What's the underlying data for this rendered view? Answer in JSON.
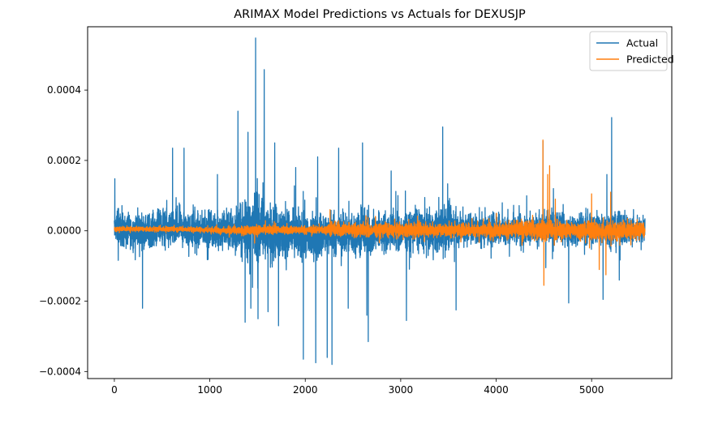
{
  "chart_data": {
    "type": "line",
    "title": "ARIMAX Model Predictions vs Actuals for DEXUSJP",
    "xlabel": "",
    "ylabel": "",
    "xlim": [
      -280,
      5840
    ],
    "ylim": [
      -0.00042,
      0.00058
    ],
    "x_ticks": [
      0,
      1000,
      2000,
      3000,
      4000,
      5000
    ],
    "y_ticks": [
      -0.0004,
      -0.0002,
      0.0,
      0.0002,
      0.0004
    ],
    "y_tick_labels": [
      "−0.0004",
      "−0.0002",
      "0.0000",
      "0.0002",
      "0.0004"
    ],
    "grid": false,
    "legend_position": "top-right",
    "n_points": 5560,
    "series": [
      {
        "name": "Actual",
        "color": "#1f77b4",
        "envelope_x": [
          0,
          100,
          200,
          300,
          400,
          500,
          600,
          700,
          800,
          900,
          1000,
          1100,
          1200,
          1300,
          1400,
          1500,
          1600,
          1700,
          1800,
          1900,
          2000,
          2100,
          2200,
          2300,
          2400,
          2500,
          2600,
          2700,
          2800,
          2900,
          3000,
          3100,
          3200,
          3300,
          3400,
          3500,
          3600,
          3700,
          3800,
          3900,
          4000,
          4100,
          4200,
          4300,
          4400,
          4500,
          4600,
          4700,
          4800,
          4900,
          5000,
          5100,
          5200,
          5300,
          5400,
          5500,
          5560
        ],
        "envelope_high": [
          0.00013,
          0.00012,
          0.00012,
          0.00012,
          0.00013,
          0.00014,
          0.00012,
          0.00013,
          0.00012,
          0.00012,
          0.00014,
          0.00014,
          0.00015,
          0.00017,
          0.00022,
          0.00024,
          0.0002,
          0.00019,
          0.00017,
          0.00016,
          0.00015,
          0.00015,
          0.00014,
          0.00014,
          0.00013,
          0.00014,
          0.00015,
          0.00014,
          0.00013,
          0.00013,
          0.00013,
          0.00013,
          0.00014,
          0.00014,
          0.00015,
          0.00016,
          0.00013,
          0.00013,
          0.00012,
          0.00012,
          0.00012,
          0.00011,
          0.00011,
          0.00011,
          0.00011,
          0.00012,
          0.00012,
          0.00011,
          0.0001,
          0.00011,
          0.00011,
          0.00012,
          0.00013,
          0.00012,
          0.00011,
          0.0001,
          0.0001
        ],
        "envelope_low": [
          -0.00011,
          -0.00012,
          -0.00012,
          -0.00012,
          -0.00012,
          -0.00012,
          -0.00012,
          -0.00011,
          -0.00012,
          -0.00012,
          -0.00013,
          -0.00014,
          -0.00015,
          -0.00017,
          -0.00021,
          -0.00023,
          -0.0002,
          -0.00019,
          -0.00018,
          -0.00018,
          -0.00019,
          -0.00018,
          -0.00016,
          -0.00015,
          -0.00015,
          -0.00016,
          -0.00017,
          -0.00016,
          -0.00014,
          -0.00013,
          -0.00013,
          -0.00013,
          -0.00013,
          -0.00014,
          -0.00015,
          -0.00014,
          -0.00012,
          -0.00011,
          -0.00011,
          -0.00011,
          -0.00011,
          -0.0001,
          -0.0001,
          -0.0001,
          -0.0001,
          -0.00011,
          -0.00011,
          -0.0001,
          -0.0001,
          -0.0001,
          -0.0001,
          -0.00011,
          -0.00012,
          -0.00011,
          -0.0001,
          -9e-05,
          -9e-05
        ],
        "spikes": [
          {
            "x": 5,
            "y": 0.000148
          },
          {
            "x": 295,
            "y": -0.00022
          },
          {
            "x": 610,
            "y": 0.000235
          },
          {
            "x": 730,
            "y": 0.000235
          },
          {
            "x": 1080,
            "y": 0.00016
          },
          {
            "x": 1295,
            "y": 0.00034
          },
          {
            "x": 1370,
            "y": -0.00026
          },
          {
            "x": 1400,
            "y": 0.00028
          },
          {
            "x": 1430,
            "y": -0.00022
          },
          {
            "x": 1480,
            "y": 0.000548
          },
          {
            "x": 1505,
            "y": -0.00025
          },
          {
            "x": 1570,
            "y": 0.000458
          },
          {
            "x": 1610,
            "y": -0.00023
          },
          {
            "x": 1680,
            "y": 0.00025
          },
          {
            "x": 1720,
            "y": -0.00027
          },
          {
            "x": 1900,
            "y": 0.00018
          },
          {
            "x": 1980,
            "y": -0.000365
          },
          {
            "x": 2110,
            "y": -0.000375
          },
          {
            "x": 2130,
            "y": 0.00021
          },
          {
            "x": 2230,
            "y": -0.00036
          },
          {
            "x": 2280,
            "y": -0.00038
          },
          {
            "x": 2350,
            "y": 0.000235
          },
          {
            "x": 2450,
            "y": -0.00022
          },
          {
            "x": 2600,
            "y": 0.00025
          },
          {
            "x": 2645,
            "y": -0.00024
          },
          {
            "x": 2660,
            "y": -0.000315
          },
          {
            "x": 2900,
            "y": 0.00017
          },
          {
            "x": 3060,
            "y": -0.000255
          },
          {
            "x": 3440,
            "y": 0.000295
          },
          {
            "x": 3580,
            "y": -0.000225
          },
          {
            "x": 4490,
            "y": 0.000255
          },
          {
            "x": 4520,
            "y": -0.000105
          },
          {
            "x": 4600,
            "y": 0.00012
          },
          {
            "x": 4760,
            "y": -0.000205
          },
          {
            "x": 5120,
            "y": -0.000195
          },
          {
            "x": 5160,
            "y": 0.00016
          },
          {
            "x": 5210,
            "y": 0.000322
          },
          {
            "x": 5290,
            "y": -0.00014
          }
        ]
      },
      {
        "name": "Predicted",
        "color": "#ff7f0e",
        "envelope_x": [
          0,
          200,
          400,
          600,
          800,
          1000,
          1200,
          1400,
          1600,
          1800,
          2000,
          2200,
          2300,
          2400,
          2600,
          2800,
          3000,
          3200,
          3400,
          3600,
          3800,
          4000,
          4200,
          4400,
          4500,
          4600,
          4800,
          5000,
          5200,
          5400,
          5560
        ],
        "envelope_high": [
          2.2e-05,
          2e-05,
          2e-05,
          2.2e-05,
          2e-05,
          2e-05,
          2.5e-05,
          3.5e-05,
          3.5e-05,
          3e-05,
          3e-05,
          3e-05,
          5.5e-05,
          5e-05,
          5e-05,
          4.5e-05,
          5e-05,
          5e-05,
          5e-05,
          5e-05,
          5e-05,
          5.5e-05,
          6e-05,
          6.5e-05,
          7.5e-05,
          6e-05,
          6e-05,
          6.5e-05,
          7e-05,
          6e-05,
          5.5e-05
        ],
        "envelope_low": [
          -1.2e-05,
          -1e-05,
          -1e-05,
          -1.2e-05,
          -1.2e-05,
          -1.5e-05,
          -2.5e-05,
          -3e-05,
          -3e-05,
          -2.5e-05,
          -2.5e-05,
          -2.5e-05,
          -5e-05,
          -4.5e-05,
          -4.5e-05,
          -4e-05,
          -4.5e-05,
          -4.5e-05,
          -4.5e-05,
          -4.5e-05,
          -4.5e-05,
          -5e-05,
          -5.5e-05,
          -6e-05,
          -7e-05,
          -6e-05,
          -5.5e-05,
          -6.5e-05,
          -7e-05,
          -6e-05,
          -5e-05
        ],
        "spikes": [
          {
            "x": 1470,
            "y": -3.5e-05
          },
          {
            "x": 2260,
            "y": 6e-05
          },
          {
            "x": 4490,
            "y": 0.000258
          },
          {
            "x": 4500,
            "y": -0.000155
          },
          {
            "x": 4540,
            "y": 0.00016
          },
          {
            "x": 4560,
            "y": 0.000185
          },
          {
            "x": 4620,
            "y": 9e-05
          },
          {
            "x": 5000,
            "y": 0.000105
          },
          {
            "x": 5080,
            "y": -0.00011
          },
          {
            "x": 5150,
            "y": -0.000125
          },
          {
            "x": 5200,
            "y": 0.00011
          }
        ]
      }
    ]
  }
}
